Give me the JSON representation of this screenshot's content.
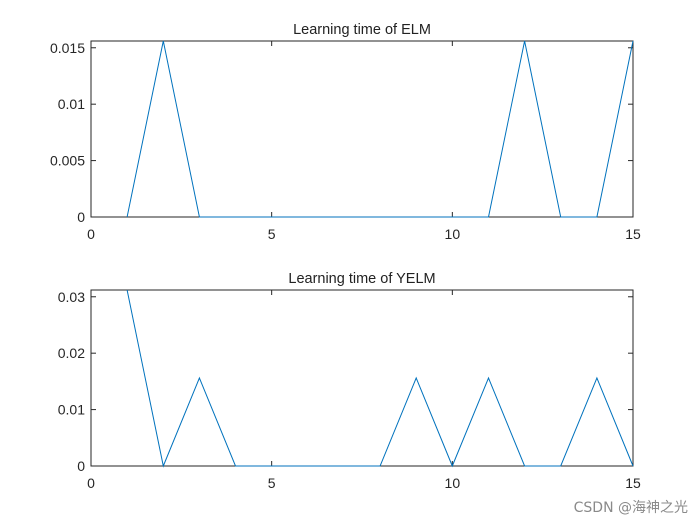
{
  "chart_data": [
    {
      "type": "line",
      "title": "Learning time of ELM",
      "xlabel": "",
      "ylabel": "",
      "xlim": [
        0,
        15
      ],
      "ylim": [
        0,
        0.0156
      ],
      "xticks": [
        0,
        5,
        10,
        15
      ],
      "xtick_labels": [
        "0",
        "5",
        "10",
        "15"
      ],
      "yticks": [
        0,
        0.005,
        0.01,
        0.015
      ],
      "ytick_labels": [
        "0",
        "0.005",
        "0.01",
        "0.015"
      ],
      "grid": false,
      "x": [
        1,
        2,
        3,
        4,
        5,
        6,
        7,
        8,
        9,
        10,
        11,
        12,
        13,
        14,
        15
      ],
      "series": [
        {
          "color": "#0072bd",
          "values": [
            0,
            0.0156,
            0,
            0,
            0,
            0,
            0,
            0,
            0,
            0,
            0,
            0.0156,
            0,
            0,
            0.0156
          ]
        }
      ]
    },
    {
      "type": "line",
      "title": "Learning time of YELM",
      "xlabel": "",
      "ylabel": "",
      "xlim": [
        0,
        15
      ],
      "ylim": [
        0,
        0.0312
      ],
      "xticks": [
        0,
        5,
        10,
        15
      ],
      "xtick_labels": [
        "0",
        "5",
        "10",
        "15"
      ],
      "yticks": [
        0,
        0.01,
        0.02,
        0.03
      ],
      "ytick_labels": [
        "0",
        "0.01",
        "0.02",
        "0.03"
      ],
      "grid": false,
      "x": [
        1,
        2,
        3,
        4,
        5,
        6,
        7,
        8,
        9,
        10,
        11,
        12,
        13,
        14,
        15
      ],
      "series": [
        {
          "color": "#0072bd",
          "values": [
            0.0312,
            0,
            0.0156,
            0,
            0,
            0,
            0,
            0,
            0.0156,
            0,
            0.0156,
            0,
            0,
            0.0156,
            0
          ]
        }
      ]
    }
  ],
  "watermark": "CSDN @海神之光"
}
